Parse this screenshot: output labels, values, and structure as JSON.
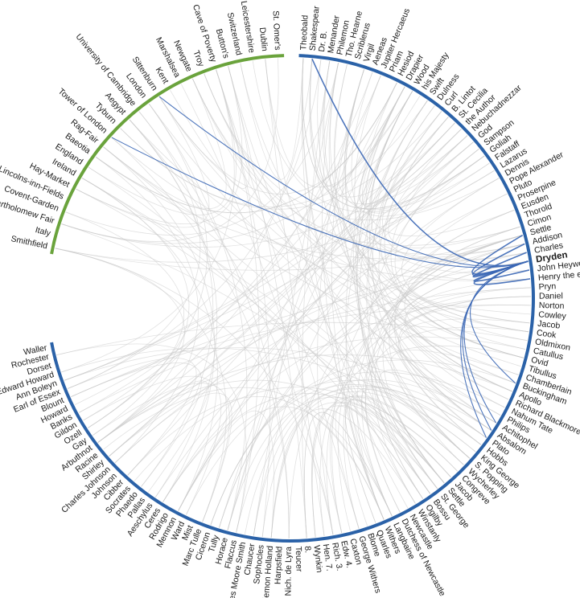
{
  "diagram": {
    "type": "chord-diagram",
    "colors": {
      "people_arc": "#2b62a8",
      "places_arc": "#6aa33c",
      "highlight_link": "#3b67b5",
      "faint_link": "#c8c8c8"
    },
    "people": [
      "Theobald",
      "Shakespear",
      "Dr. B.",
      "Menander",
      "Philemon",
      "Tho. Hearne",
      "Scriblerus",
      "Virgil",
      "Aeneas",
      "Jupiter Hercaeus",
      "Priam",
      "Hesiod",
      "Drapier",
      "Wood",
      "his Majesty",
      "Swift",
      "Dulness",
      "Curl",
      "B. Lintot",
      "St. Cecilia",
      "the Author",
      "Nebuchadnezzar",
      "God",
      "Sampson",
      "Goliah",
      "Falstaff",
      "Lazarus",
      "Dennis",
      "Pope Alexander",
      "Pluto",
      "Proserpine",
      "Eusden",
      "Thorold",
      "Cimon",
      "Settle",
      "Addison",
      "Charles",
      "Dryden",
      "John Heywood",
      "Henry the eighth",
      "Pryn",
      "Daniel",
      "Norton",
      "Cowley",
      "Jacob",
      "Cook",
      "Oldmixon",
      "Catullus",
      "Ovid",
      "Tibullus",
      "Chamberlain",
      "Buckingham",
      "Apollo",
      "Richard Blackmore",
      "Nahum Tate",
      "Philips",
      "Achitophel",
      "Absalom",
      "Plato",
      "Hobbs",
      "King George",
      "S. Popping",
      "Wycherley",
      "Congreve",
      "Jacob",
      "Settle",
      "St. George",
      "Bossu",
      "Ogilby",
      "Winstanly",
      "Newcastle",
      "Dutchess of Newcastle",
      "Langbaine",
      "Withers",
      "Quarles",
      "Blome",
      "George Withers",
      "Caxton",
      "Edw. 4.",
      "Rich. 3.",
      "Hen. 7.",
      "Wynkin",
      "8.",
      "Teucer",
      "Nich. de Lyra",
      "Harpsfield",
      "Philemon Holland",
      "Sophocles",
      "Chaucer",
      "James Moore Smith",
      "Flaccus",
      "Horace",
      "Tully",
      "Ciceron",
      "Marc Tulle",
      "Mist",
      "Ward",
      "Memnon",
      "Rodrigo",
      "Ceres",
      "Aeschylus",
      "Pallas",
      "Phaedo",
      "Socrates",
      "Cibber",
      "Johnson",
      "Charles Johnson",
      "Shirley",
      "Racine",
      "Arbuthnot",
      "Gay",
      "Ozell",
      "Gildon",
      "Banks",
      "Howard",
      "Blount",
      "Earl of Essex",
      "Ann Boleyn",
      "Edward Howard",
      "Dorset",
      "Rochester",
      "Waller"
    ],
    "places": [
      "Smithfield",
      "Italy",
      "Bartholomew Fair",
      "Covent-Garden",
      "Lincolns-inn-Fields",
      "Hay-Market",
      "Ireland",
      "England",
      "Baeotia",
      "Rag-Fair",
      "Tower of London",
      "Tyburn",
      "Aegypt",
      "University of Cambridge",
      "London",
      "Sittenburn",
      "Kent",
      "Marshalsea",
      "Newgate",
      "Troy",
      "Cave of Poverty",
      "Button's",
      "Switzerland",
      "Leicestershire",
      "Dublin",
      "St. Omer's"
    ],
    "highlight": "Dryden"
  }
}
